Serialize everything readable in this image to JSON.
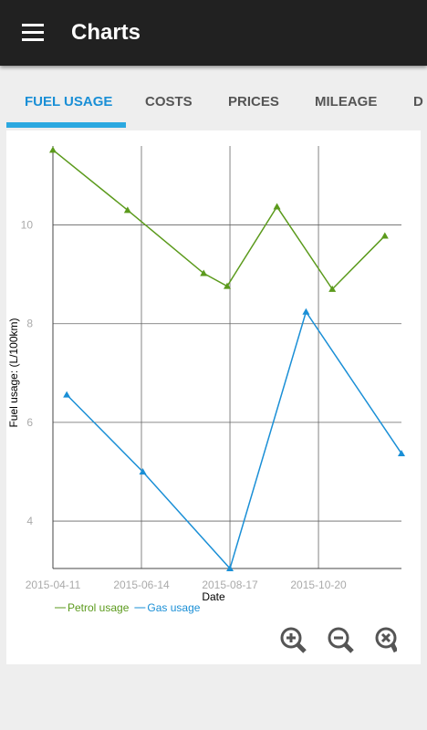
{
  "app_bar": {
    "title": "Charts"
  },
  "tabs": [
    "FUEL USAGE",
    "COSTS",
    "PRICES",
    "MILEAGE",
    "D"
  ],
  "chart_data": {
    "type": "line",
    "x_label": "Date",
    "y_label": "Fuel usage: (L/100km)",
    "xlim": [
      "2015-04-11",
      "2015-12-19"
    ],
    "xticks": [
      "2015-04-11",
      "2015-06-14",
      "2015-08-17",
      "2015-10-20"
    ],
    "ylim": [
      3.04,
      11.6
    ],
    "yticks": [
      4,
      6,
      8,
      10
    ],
    "grid": true,
    "series": [
      {
        "name": "Petrol usage",
        "color": "#5b9a1c",
        "x": [
          "2015-04-11",
          "2015-06-04",
          "2015-07-29",
          "2015-08-15",
          "2015-09-20",
          "2015-10-30",
          "2015-12-07"
        ],
        "values": [
          11.52,
          10.3,
          9.02,
          8.76,
          10.37,
          8.7,
          9.78
        ]
      },
      {
        "name": "Gas usage",
        "color": "#1a8fd6",
        "x": [
          "2015-04-21",
          "2015-06-15",
          "2015-08-17",
          "2015-10-11",
          "2015-12-19"
        ],
        "values": [
          6.56,
          5.0,
          3.04,
          8.24,
          5.37
        ]
      }
    ]
  }
}
